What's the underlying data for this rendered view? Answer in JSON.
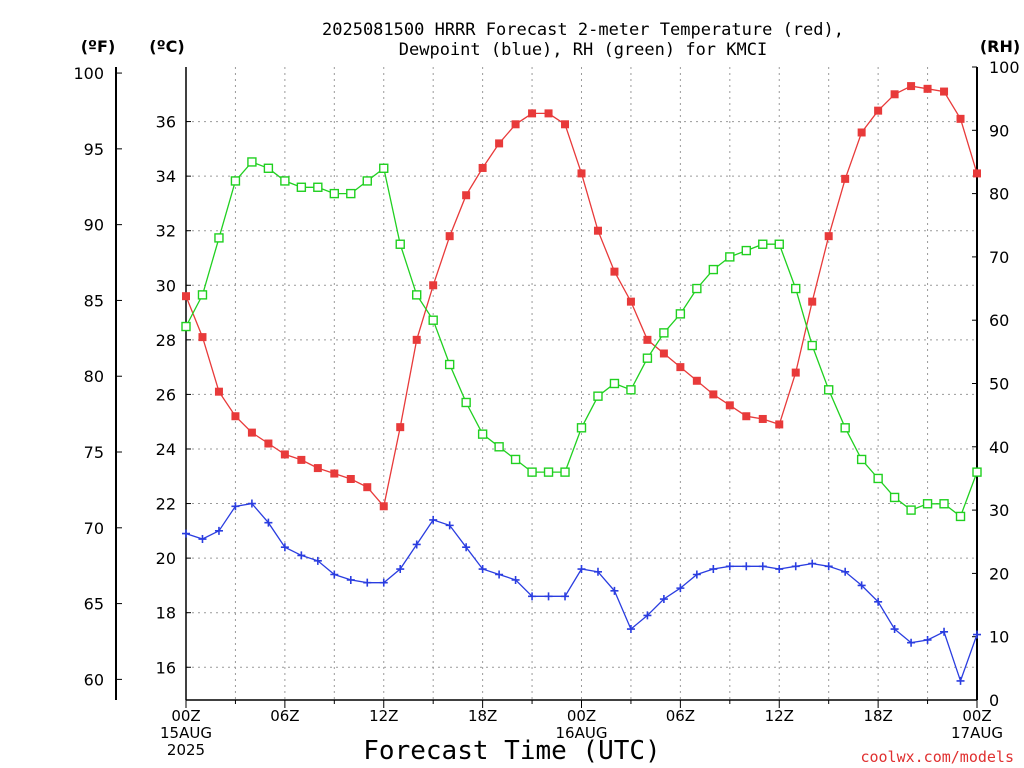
{
  "title_line1": "2025081500 HRRR Forecast 2-meter Temperature (red),",
  "title_line2": "Dewpoint (blue), RH (green) for KMCI",
  "unit_f": "(ºF)",
  "unit_c": "(ºC)",
  "unit_rh": "(RH)",
  "xlabel": "Forecast Time (UTC)",
  "credit": "coolwx.com/models",
  "colors": {
    "temperature": "#e83a3a",
    "dewpoint": "#2a3de0",
    "rh": "#20d020"
  },
  "chart_data": {
    "type": "line",
    "x_unit": "forecast hour (UTC, starting 00Z 15AUG 2025)",
    "x_range": [
      0,
      48
    ],
    "y_celsius_range": [
      14.8,
      38.0
    ],
    "y_f_ticks": [
      60,
      65,
      70,
      75,
      80,
      85,
      90,
      95,
      100
    ],
    "y_c_ticks": [
      16,
      18,
      20,
      22,
      24,
      26,
      28,
      30,
      32,
      34,
      36
    ],
    "y_rh_ticks": [
      0,
      10,
      20,
      30,
      40,
      50,
      60,
      70,
      80,
      90,
      100
    ],
    "rh_range": [
      0,
      100
    ],
    "x_ticks": [
      {
        "hour": 0,
        "lines": [
          "00Z",
          "15AUG",
          "2025"
        ]
      },
      {
        "hour": 6,
        "lines": [
          "06Z"
        ]
      },
      {
        "hour": 12,
        "lines": [
          "12Z"
        ]
      },
      {
        "hour": 18,
        "lines": [
          "18Z"
        ]
      },
      {
        "hour": 24,
        "lines": [
          "00Z",
          "16AUG"
        ]
      },
      {
        "hour": 30,
        "lines": [
          "06Z"
        ]
      },
      {
        "hour": 36,
        "lines": [
          "12Z"
        ]
      },
      {
        "hour": 42,
        "lines": [
          "18Z"
        ]
      },
      {
        "hour": 48,
        "lines": [
          "00Z",
          "17AUG"
        ]
      }
    ],
    "grid": true,
    "series": [
      {
        "key": "temperature",
        "axis": "celsius",
        "marker": "filled-square",
        "values": [
          29.6,
          28.1,
          26.1,
          25.2,
          24.6,
          24.2,
          23.8,
          23.6,
          23.3,
          23.1,
          22.9,
          22.6,
          21.9,
          24.8,
          28.0,
          30.0,
          31.8,
          33.3,
          34.3,
          35.2,
          35.9,
          36.3,
          36.3,
          35.9,
          34.1,
          32.0,
          30.5,
          29.4,
          28.0,
          27.5,
          27.0,
          26.5,
          26.0,
          25.6,
          25.2,
          25.1,
          24.9,
          26.8,
          29.4,
          31.8,
          33.9,
          35.6,
          36.4,
          37.0,
          37.3,
          37.2,
          37.1,
          36.1,
          34.1
        ]
      },
      {
        "key": "dewpoint",
        "axis": "celsius",
        "marker": "plus",
        "values": [
          20.9,
          20.7,
          21.0,
          21.9,
          22.0,
          21.3,
          20.4,
          20.1,
          19.9,
          19.4,
          19.2,
          19.1,
          19.1,
          19.6,
          20.5,
          21.4,
          21.2,
          20.4,
          19.6,
          19.4,
          19.2,
          18.6,
          18.6,
          18.6,
          19.6,
          19.5,
          18.8,
          17.4,
          17.9,
          18.5,
          18.9,
          19.4,
          19.6,
          19.7,
          19.7,
          19.7,
          19.6,
          19.7,
          19.8,
          19.7,
          19.5,
          19.0,
          18.4,
          17.4,
          16.9,
          17.0,
          17.3,
          15.5,
          17.2
        ]
      },
      {
        "key": "rh",
        "axis": "rh",
        "marker": "open-square",
        "values": [
          59,
          64,
          73,
          82,
          85,
          84,
          82,
          81,
          81,
          80,
          80,
          82,
          84,
          72,
          64,
          60,
          53,
          47,
          42,
          40,
          38,
          36,
          36,
          36,
          43,
          48,
          50,
          49,
          54,
          58,
          61,
          65,
          68,
          70,
          71,
          72,
          72,
          65,
          56,
          49,
          43,
          38,
          35,
          32,
          30,
          31,
          31,
          29,
          36
        ]
      }
    ]
  }
}
